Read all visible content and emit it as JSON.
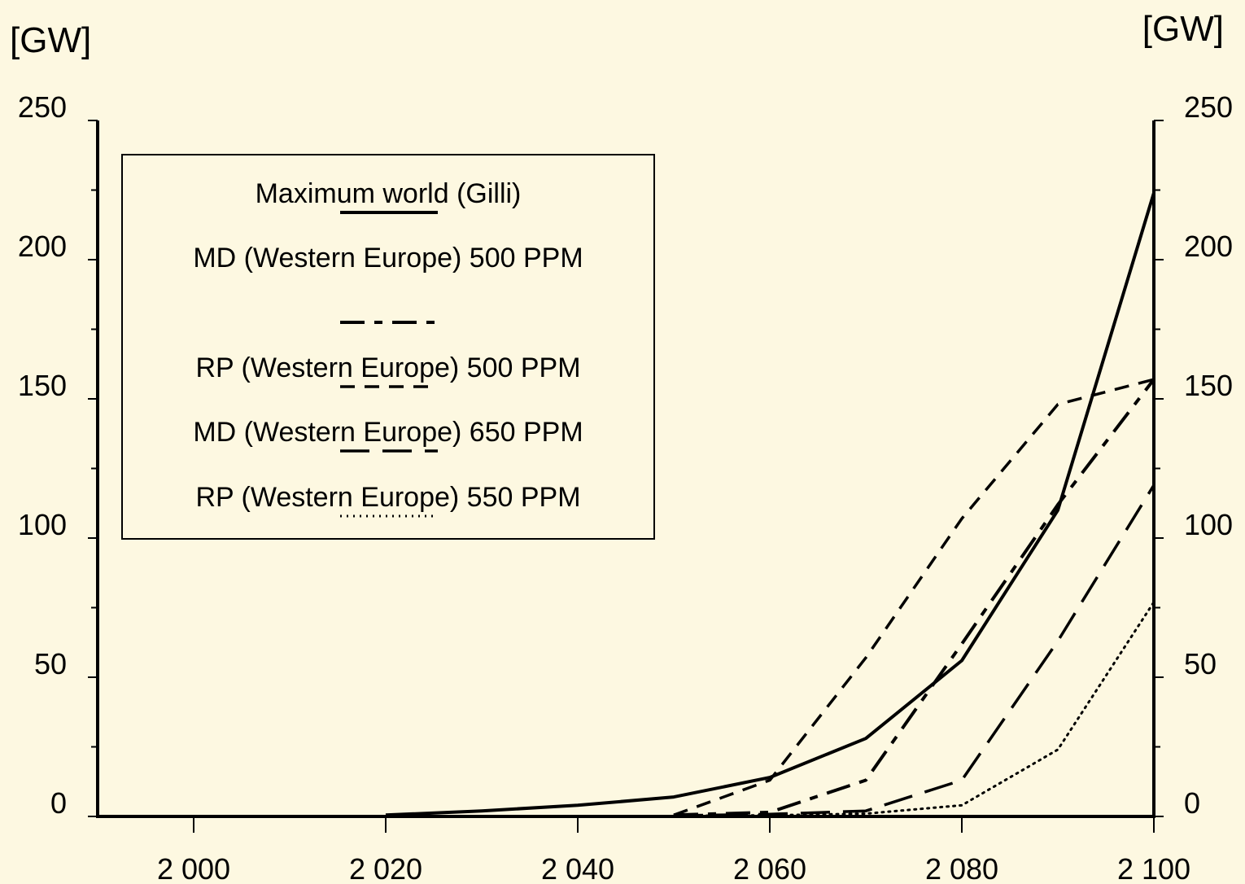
{
  "chart_data": {
    "type": "line",
    "y_unit_left": "[GW]",
    "y_unit_right": "[GW]",
    "xlim": [
      1990,
      2100
    ],
    "ylim": [
      0,
      250
    ],
    "x_ticks": [
      {
        "value": 2000,
        "label": "2 000"
      },
      {
        "value": 2020,
        "label": "2 020"
      },
      {
        "value": 2040,
        "label": "2 040"
      },
      {
        "value": 2060,
        "label": "2 060"
      },
      {
        "value": 2080,
        "label": "2 080"
      },
      {
        "value": 2100,
        "label": "2 100"
      }
    ],
    "y_ticks": [
      {
        "value": 0,
        "label": "0"
      },
      {
        "value": 50,
        "label": "50"
      },
      {
        "value": 100,
        "label": "100"
      },
      {
        "value": 150,
        "label": "150"
      },
      {
        "value": 200,
        "label": "200"
      },
      {
        "value": 250,
        "label": "250"
      }
    ],
    "y_minor_ticks": [
      25,
      75,
      125,
      175,
      225
    ],
    "legend_placement": "top-left",
    "series": [
      {
        "name": "Maximum world (Gilli)",
        "style": "solid",
        "x": [
          2020,
          2030,
          2040,
          2050,
          2060,
          2070,
          2080,
          2090,
          2100
        ],
        "y": [
          0.5,
          2,
          4,
          7,
          14,
          28,
          56,
          110,
          224
        ]
      },
      {
        "name": "MD (Western Europe) 500 PPM",
        "style": "dash-dot",
        "x": [
          2050,
          2060,
          2070,
          2080,
          2090,
          2100
        ],
        "y": [
          0.5,
          1.5,
          13,
          62,
          112,
          157
        ]
      },
      {
        "name": "RP (Western Europe) 500 PPM",
        "style": "short-dash",
        "x": [
          2050,
          2060,
          2070,
          2080,
          2090,
          2100
        ],
        "y": [
          0.5,
          13,
          57,
          107,
          148,
          157
        ]
      },
      {
        "name": "MD (Western Europe) 650 PPM",
        "style": "long-dash",
        "x": [
          2050,
          2060,
          2070,
          2080,
          2090,
          2100
        ],
        "y": [
          0.3,
          0.8,
          2,
          13,
          63,
          119
        ]
      },
      {
        "name": "RP (Western Europe) 550 PPM",
        "style": "dotted",
        "x": [
          2050,
          2060,
          2070,
          2080,
          2090,
          2100
        ],
        "y": [
          0.2,
          0.4,
          1,
          4,
          24,
          77
        ]
      }
    ]
  }
}
